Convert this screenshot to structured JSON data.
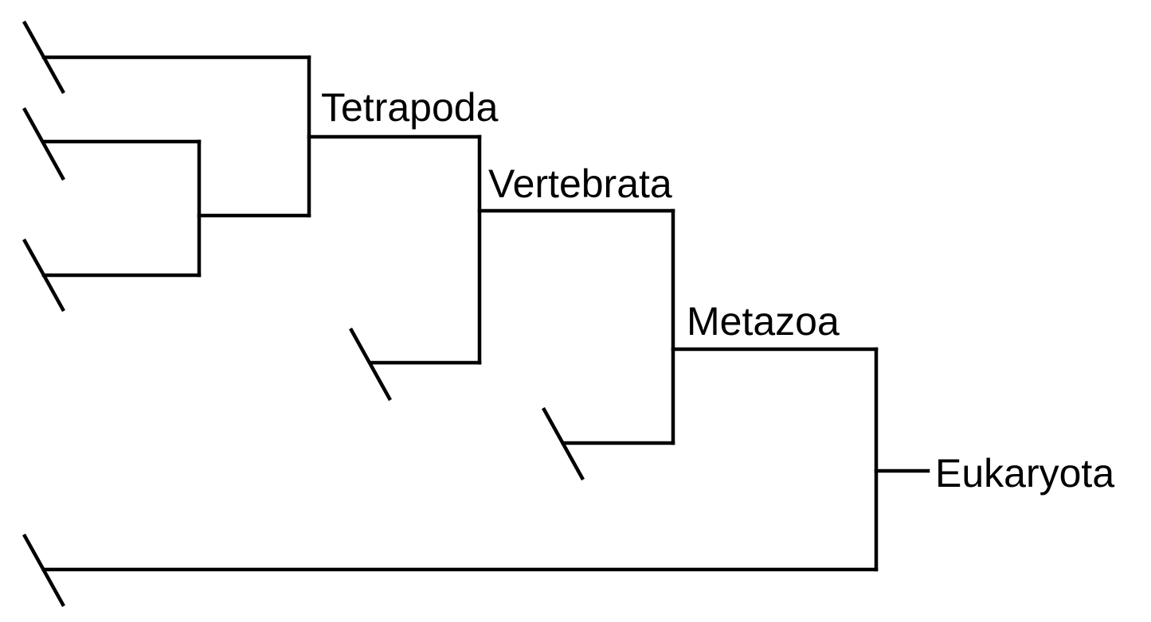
{
  "diagram": {
    "type": "cladogram",
    "line_color": "#000000",
    "background": "#ffffff",
    "clades": {
      "tetrapoda": "Tetrapoda",
      "vertebrata": "Vertebrata",
      "metazoa": "Metazoa",
      "eukaryota": "Eukaryota"
    }
  }
}
